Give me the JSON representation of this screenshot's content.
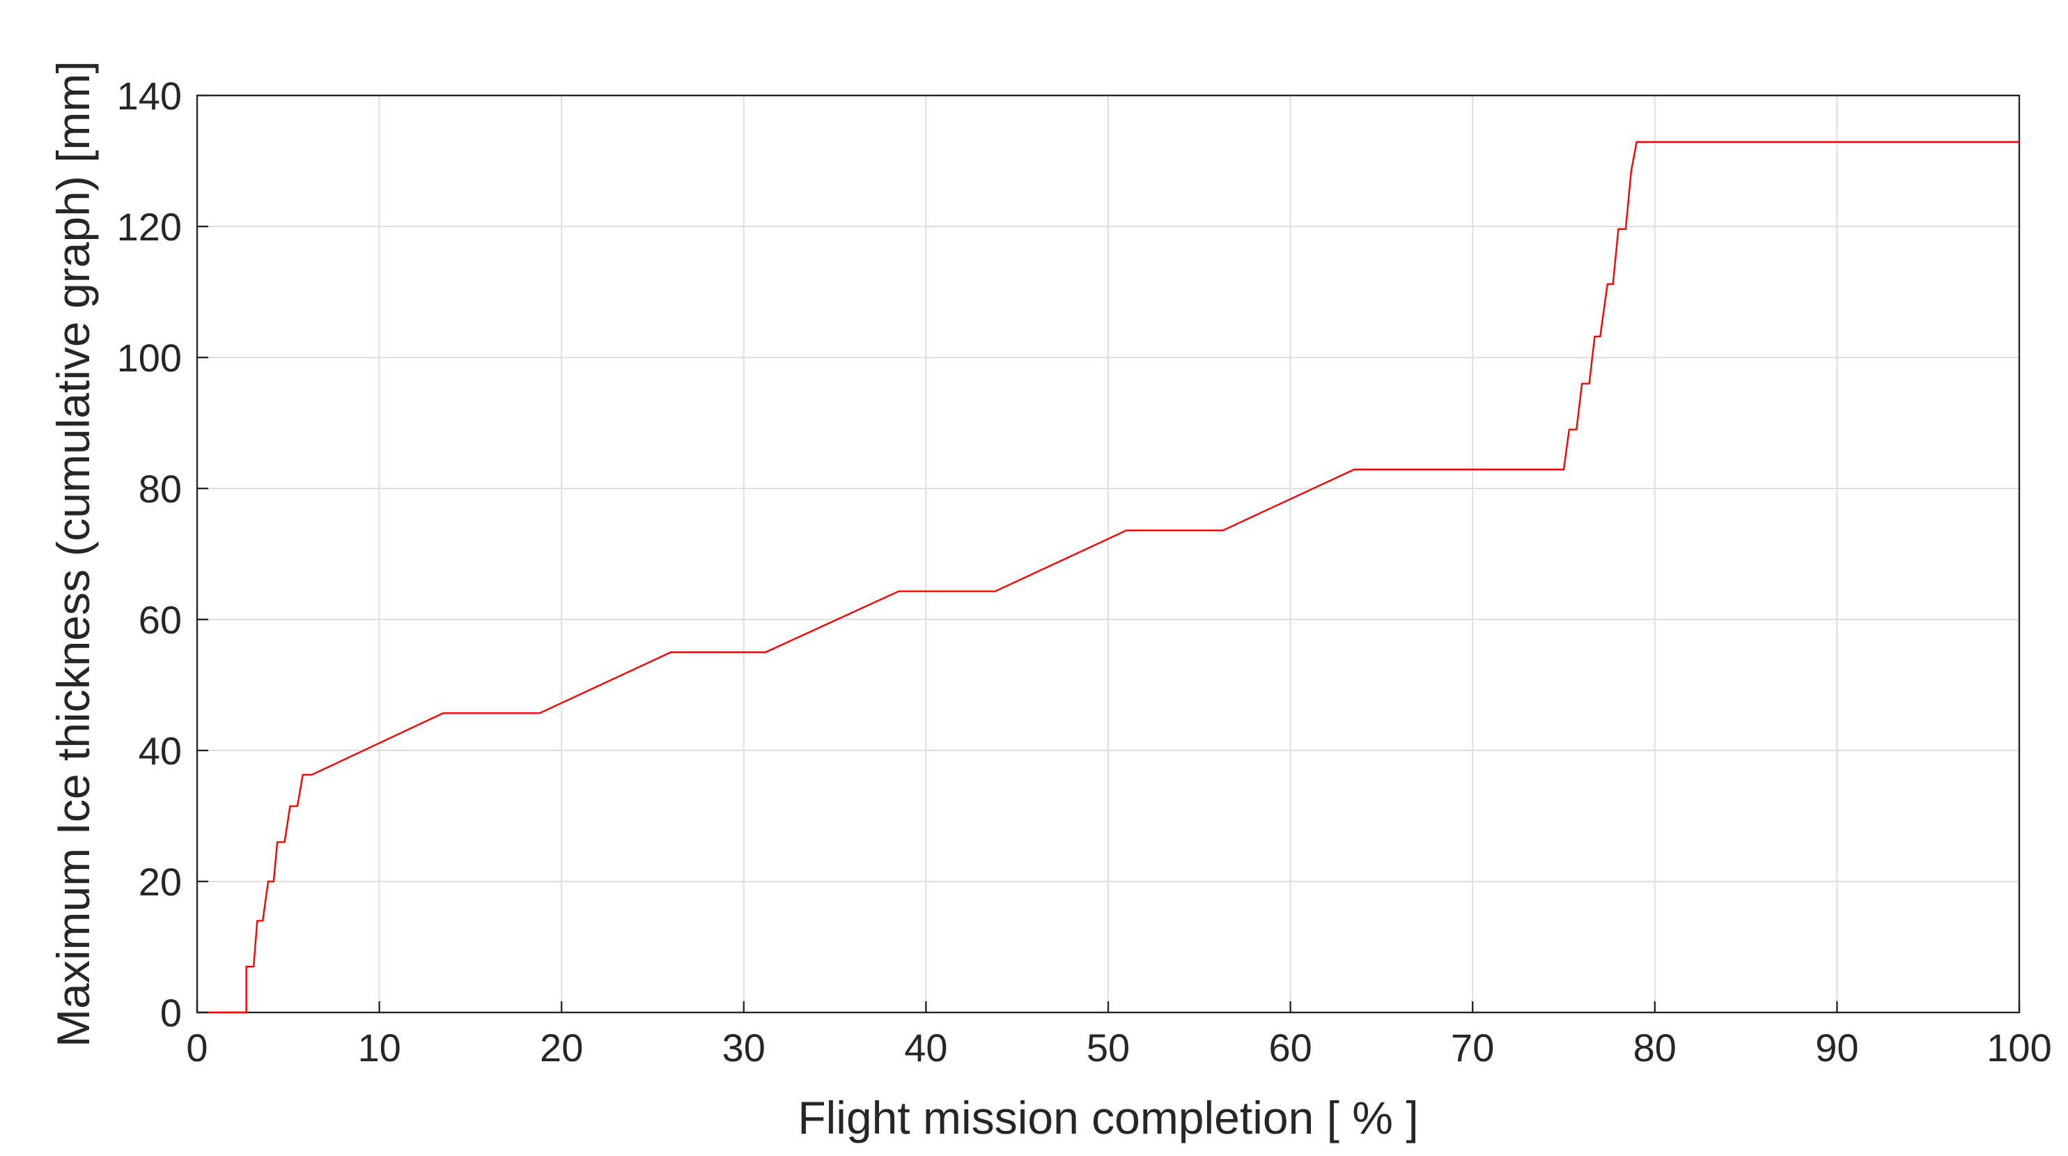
{
  "chart_data": {
    "type": "line",
    "title": "",
    "xlabel": "Flight mission completion [ % ]",
    "ylabel": "Maximum Ice thickness (cumulative graph) [mm]",
    "xlim": [
      0,
      100
    ],
    "ylim": [
      0,
      140
    ],
    "xticks": [
      0,
      10,
      20,
      30,
      40,
      50,
      60,
      70,
      80,
      90,
      100
    ],
    "yticks": [
      0,
      20,
      40,
      60,
      80,
      100,
      120,
      140
    ],
    "grid": true,
    "box": true,
    "legend": "none",
    "series": [
      {
        "color": "#ff0000",
        "x": [
          0,
          2.7,
          2.7,
          3.1,
          3.3,
          3.6,
          3.9,
          4.2,
          4.4,
          4.8,
          5.1,
          5.5,
          5.8,
          6.3,
          13.5,
          18.8,
          26.0,
          31.2,
          38.5,
          43.8,
          51.0,
          56.3,
          63.5,
          75.0,
          75.3,
          75.7,
          76.0,
          76.4,
          76.7,
          77.0,
          77.4,
          77.7,
          78.0,
          78.4,
          78.7,
          79.0,
          100
        ],
        "y": [
          0,
          0,
          7,
          7,
          14,
          14,
          20,
          20,
          26,
          26,
          31.5,
          31.5,
          36.3,
          36.3,
          45.7,
          45.7,
          55,
          55,
          64.3,
          64.3,
          73.6,
          73.6,
          82.9,
          82.9,
          89,
          89,
          96,
          96,
          103.2,
          103.2,
          111.2,
          111.2,
          119.6,
          119.6,
          128.4,
          132.9,
          132.9
        ]
      }
    ]
  }
}
